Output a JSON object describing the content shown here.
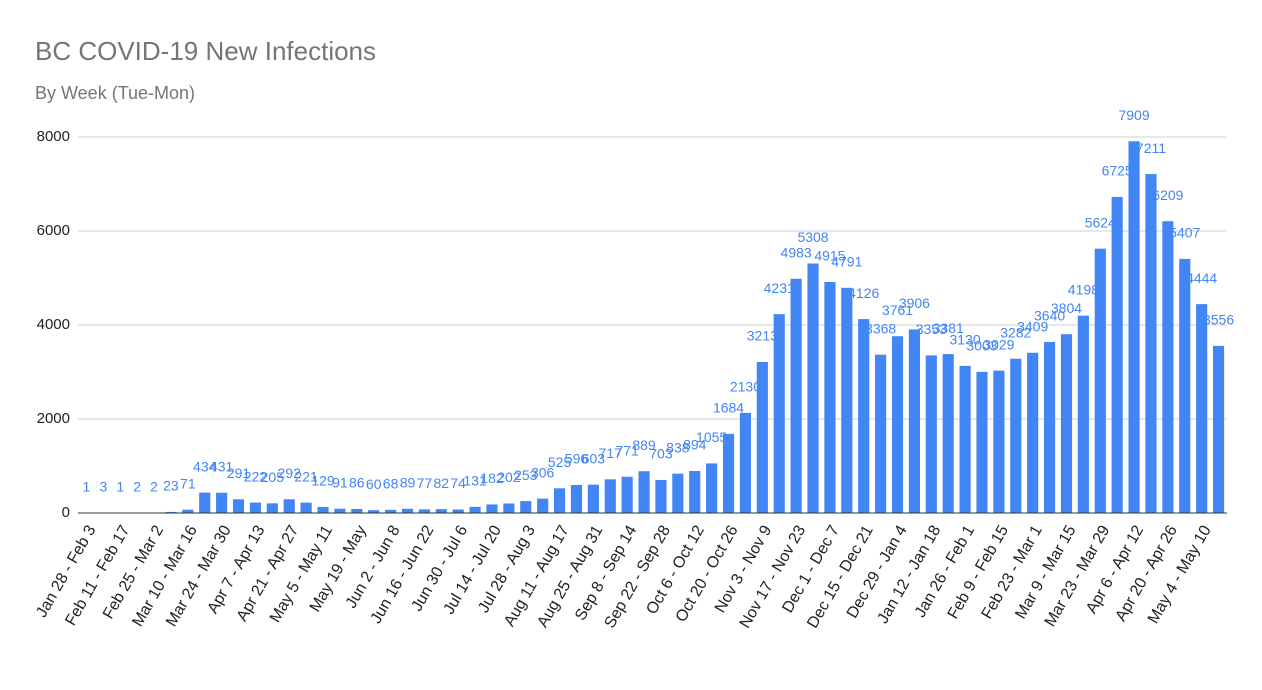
{
  "chart_data": {
    "type": "bar",
    "title": "BC COVID-19 New Infections",
    "subtitle": "By Week (Tue-Mon)",
    "categories": [
      "Jan 28 - Feb 3",
      null,
      "Feb 11 - Feb 17",
      null,
      "Feb 25 - Mar 2",
      null,
      "Mar 10 - Mar 16",
      null,
      "Mar 24 - Mar 30",
      null,
      "Apr 7 - Apr 13",
      null,
      "Apr 21 - Apr 27",
      null,
      "May 5 - May 11",
      null,
      "May 19 - May",
      null,
      "Jun 2 - Jun 8",
      null,
      "Jun 16 - Jun 22",
      null,
      "Jun 30 - Jul 6",
      null,
      "Jul 14 - Jul 20",
      null,
      "Jul 28 - Aug 3",
      null,
      "Aug 11 - Aug 17",
      null,
      "Aug 25 - Aug 31",
      null,
      "Sep 8 - Sep 14",
      null,
      "Sep 22 - Sep 28",
      null,
      "Oct 6 - Oct 12",
      null,
      "Oct 20 - Oct 26",
      null,
      "Nov 3 - Nov 9",
      null,
      "Nov 17 - Nov 23",
      null,
      "Dec 1 - Dec 7",
      null,
      "Dec 15 - Dec 21",
      null,
      "Dec 29 - Jan 4",
      null,
      "Jan 12 - Jan 18",
      null,
      "Jan 26 - Feb 1",
      null,
      "Feb 9 - Feb 15",
      null,
      "Feb 23 - Mar 1",
      null,
      "Mar 9 - Mar 15",
      null,
      "Mar 23 - Mar 29",
      null,
      "Apr 6 - Apr 12",
      null,
      "Apr 20 - Apr 26",
      null,
      "May 4 - May 10",
      null
    ],
    "values": [
      1,
      3,
      1,
      2,
      2,
      23,
      71,
      434,
      431,
      291,
      222,
      205,
      292,
      221,
      129,
      91,
      86,
      60,
      68,
      89,
      77,
      82,
      74,
      131,
      182,
      202,
      253,
      306,
      525,
      596,
      603,
      717,
      771,
      889,
      703,
      838,
      894,
      1055,
      1684,
      2130,
      3213,
      4231,
      4983,
      5308,
      4915,
      4791,
      4126,
      3368,
      3761,
      3906,
      3353,
      3381,
      3130,
      3003,
      3029,
      3282,
      3409,
      3640,
      3804,
      4198,
      5624,
      6725,
      7909,
      7211,
      6209,
      5407,
      4444,
      3556
    ],
    "color": "#4285f4",
    "ylim": [
      0,
      8000
    ],
    "yticks": [
      0,
      2000,
      4000,
      6000,
      8000
    ],
    "grid": true
  }
}
